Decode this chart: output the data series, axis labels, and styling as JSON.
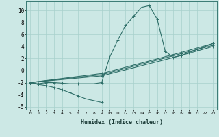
{
  "xlabel": "Humidex (Indice chaleur)",
  "xlim": [
    -0.5,
    23.5
  ],
  "ylim": [
    -6.5,
    11.5
  ],
  "bg_color": "#cce8e5",
  "line_color": "#2e6e68",
  "grid_color": "#a8d0cc",
  "xticks": [
    0,
    1,
    2,
    3,
    4,
    5,
    6,
    7,
    8,
    9,
    10,
    11,
    12,
    13,
    14,
    15,
    16,
    17,
    18,
    19,
    20,
    21,
    22,
    23
  ],
  "yticks": [
    -6,
    -4,
    -2,
    0,
    2,
    4,
    6,
    8,
    10
  ],
  "lines": [
    {
      "x": [
        0,
        1,
        2,
        3,
        4,
        5,
        6,
        7,
        8,
        9,
        10,
        11,
        12,
        13,
        14,
        15,
        16,
        17,
        18,
        19,
        20,
        21,
        22,
        23
      ],
      "y": [
        -2.0,
        -2.2,
        -2.0,
        -2.0,
        -2.1,
        -2.2,
        -2.2,
        -2.2,
        -2.2,
        -2.0,
        2.2,
        5.0,
        7.5,
        9.0,
        10.5,
        10.8,
        8.5,
        3.2,
        2.2,
        2.5,
        3.0,
        3.5,
        4.0,
        4.5
      ]
    },
    {
      "x": [
        0,
        9,
        19,
        23
      ],
      "y": [
        -2.0,
        -0.5,
        3.0,
        4.5
      ]
    },
    {
      "x": [
        0,
        9,
        19,
        23
      ],
      "y": [
        -2.0,
        -0.7,
        2.8,
        4.2
      ]
    },
    {
      "x": [
        0,
        9,
        19,
        23
      ],
      "y": [
        -2.0,
        -0.9,
        2.5,
        4.0
      ]
    },
    {
      "x": [
        0,
        1,
        2,
        3,
        4,
        5,
        6,
        7,
        8,
        9
      ],
      "y": [
        -2.0,
        -2.3,
        -2.5,
        -2.8,
        -3.2,
        -3.7,
        -4.2,
        -4.7,
        -5.0,
        -5.3
      ]
    }
  ]
}
